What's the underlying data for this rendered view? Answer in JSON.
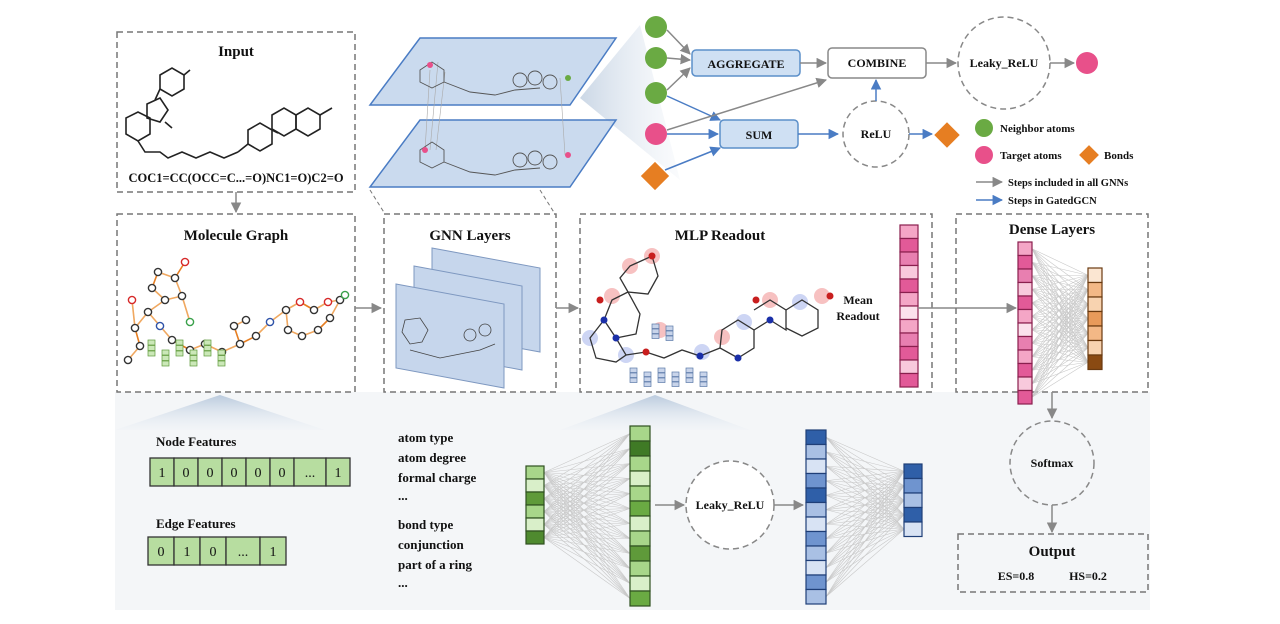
{
  "panels": {
    "input": "Input",
    "molecule_graph": "Molecule Graph",
    "gnn_layers": "GNN Layers",
    "mlp_readout": "MLP Readout",
    "dense_layers": "Dense Layers",
    "output": "Output"
  },
  "smiles": "COC1=CC(OCC=C...=O)NC1=O)C2=O",
  "ops": {
    "aggregate": "AGGREGATE",
    "combine": "COMBINE",
    "leaky_relu": "Leaky_ReLU",
    "sum": "SUM",
    "relu": "ReLU",
    "mean": "Mean",
    "readout": "Readout",
    "softmax": "Softmax",
    "mlp_activation": "Leaky_ReLU"
  },
  "legend": {
    "neighbor": "Neighbor atoms",
    "target": "Target atoms",
    "bonds": "Bonds",
    "gray_steps": "Steps included in all GNNs",
    "blue_steps": "Steps in GatedGCN"
  },
  "features": {
    "node_title": "Node Features",
    "node_vector": [
      "1",
      "0",
      "0",
      "0",
      "0",
      "0",
      "...",
      "1"
    ],
    "edge_title": "Edge Features",
    "edge_vector": [
      "0",
      "1",
      "0",
      "...",
      "1"
    ],
    "node_list": [
      "atom type",
      "atom degree",
      "formal charge",
      "..."
    ],
    "edge_list": [
      "bond type",
      "conjunction",
      "part of a ring",
      "..."
    ]
  },
  "output": {
    "es": "ES=0.8",
    "hs": "HS=0.2"
  },
  "colors": {
    "green_node": "#6aaa43",
    "pink_node": "#e8508a",
    "orange_bond": "#e67e22",
    "op_fill": "#cfe0f3",
    "op_stroke": "#5b8fc9",
    "gray_arrow": "#888888",
    "blue_arrow": "#4a7cc4",
    "layer_fill": "#b8cde8"
  }
}
